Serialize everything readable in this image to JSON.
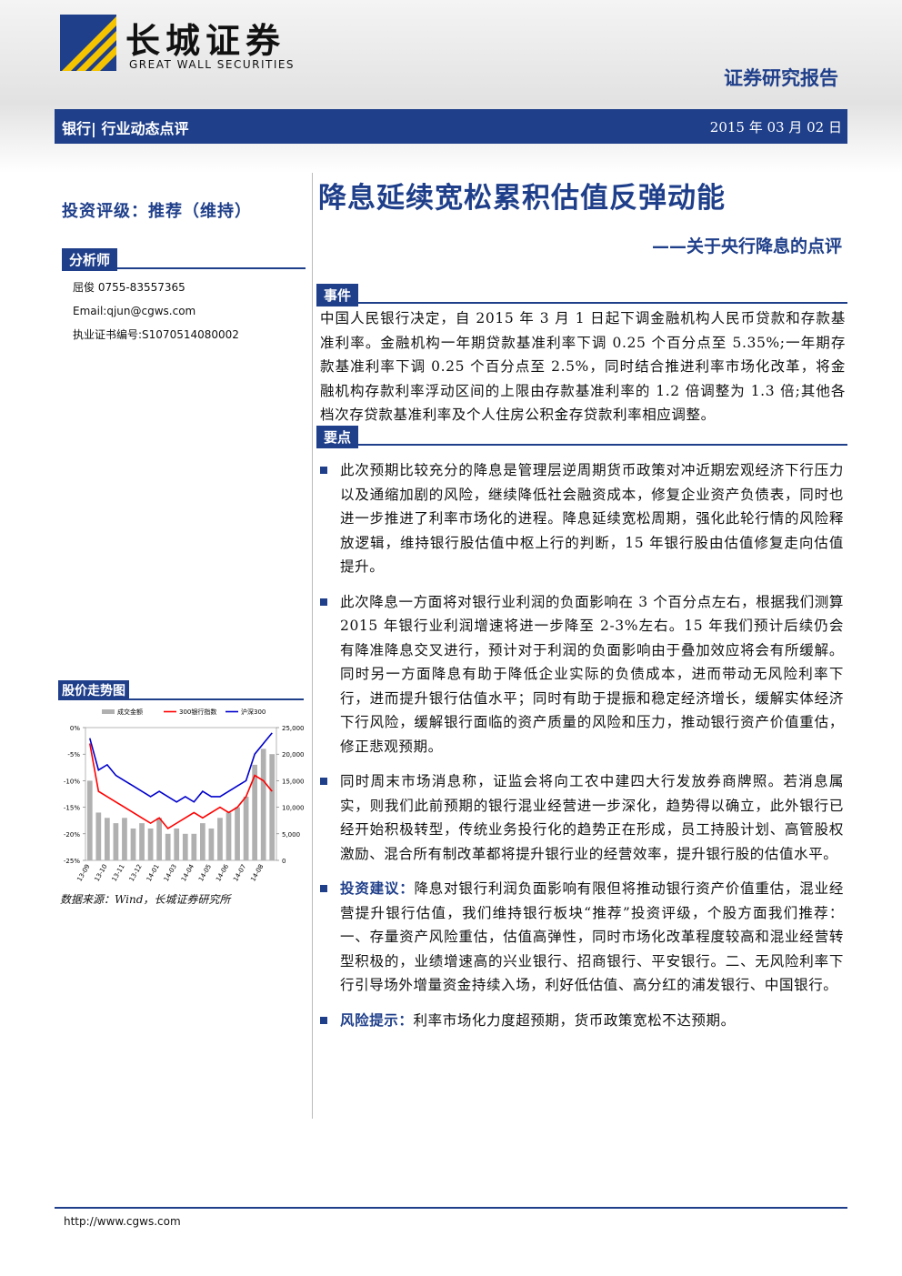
{
  "header": {
    "company_cn": "长城证券",
    "company_en": "GREAT WALL SECURITIES",
    "report_type": "证券研究报告",
    "section": "银行|",
    "category": "行业动态点评",
    "date": "2015 年 03 月 02 日"
  },
  "sidebar": {
    "rating": "投资评级：推荐（维持）",
    "analyst_heading": "分析师",
    "analyst_lines": [
      "屈俊 0755-83557365",
      "Email:qjun@cgws.com",
      "执业证书编号:S1070514080002"
    ],
    "chart_heading": "股价走势图",
    "source": "数据来源：Wind，长城证券研究所"
  },
  "main": {
    "title": "降息延续宽松累积估值反弹动能",
    "subtitle": "——关于央行降息的点评",
    "event_heading": "事件",
    "event_text": "中国人民银行决定，自 2015 年 3 月 1 日起下调金融机构人民币贷款和存款基准利率。金融机构一年期贷款基准利率下调 0.25 个百分点至 5.35%;一年期存款基准利率下调 0.25 个百分点至 2.5%，同时结合推进利率市场化改革，将金融机构存款利率浮动区间的上限由存款基准利率的 1.2 倍调整为 1.3 倍;其他各档次存贷款基准利率及个人住房公积金存贷款利率相应调整。",
    "points_heading": "要点",
    "points": [
      {
        "text": "此次预期比较充分的降息是管理层逆周期货币政策对冲近期宏观经济下行压力以及通缩加剧的风险，继续降低社会融资成本，修复企业资产负债表，同时也进一步推进了利率市场化的进程。降息延续宽松周期，强化此轮行情的风险释放逻辑，维持银行股估值中枢上行的判断，15 年银行股由估值修复走向估值提升。"
      },
      {
        "text": "此次降息一方面将对银行业利润的负面影响在 3 个百分点左右，根据我们测算 2015 年银行业利润增速将进一步降至 2-3%左右。15 年我们预计后续仍会有降准降息交叉进行，预计对于利润的负面影响由于叠加效应将会有所缓解。同时另一方面降息有助于降低企业实际的负债成本，进而带动无风险利率下行，进而提升银行估值水平；同时有助于提振和稳定经济增长，缓解实体经济下行风险，缓解银行面临的资产质量的风险和压力，推动银行资产价值重估，修正悲观预期。"
      },
      {
        "text": "同时周末市场消息称，证监会将向工农中建四大行发放券商牌照。若消息属实，则我们此前预期的银行混业经营进一步深化，趋势得以确立，此外银行已经开始积极转型，传统业务投行化的趋势正在形成，员工持股计划、高管股权激励、混合所有制改革都将提升银行业的经营效率，提升银行股的估值水平。"
      },
      {
        "lead": "投资建议：",
        "text": "降息对银行利润负面影响有限但将推动银行资产价值重估，混业经营提升银行估值，我们维持银行板块“推荐”投资评级，个股方面我们推荐：一、存量资产风险重估，估值高弹性，同时市场化改革程度较高和混业经营转型积极的，业绩增速高的兴业银行、招商银行、平安银行。二、无风险利率下行引导场外增量资金持续入场，利好低估值、高分红的浦发银行、中国银行。"
      },
      {
        "lead": "风险提示：",
        "text": "利率市场化力度超预期，货币政策宽松不达预期。"
      }
    ]
  },
  "footer": {
    "url": "http://www.cgws.com"
  },
  "chart_data": {
    "type": "line",
    "categories": [
      "13-09",
      null,
      "13-10",
      null,
      "13-11",
      null,
      "13-12",
      null,
      "14-01",
      null,
      "14-03",
      null,
      "14-04",
      null,
      "14-05",
      null,
      "14-06",
      null,
      "14-07",
      null,
      "14-08",
      null
    ],
    "series": [
      {
        "name": "成交金额",
        "type": "bar",
        "axis": "y2",
        "color": "#b0b0b0",
        "values": [
          15000,
          9000,
          8000,
          7000,
          8000,
          6000,
          7000,
          6000,
          8000,
          5000,
          6000,
          5000,
          5000,
          7000,
          6000,
          8000,
          9000,
          10000,
          12000,
          18000,
          21000,
          20000
        ]
      },
      {
        "name": "300银行指数",
        "color": "#ff0000",
        "values": [
          -3,
          -12,
          -13,
          -14,
          -15,
          -16,
          -17,
          -18,
          -17,
          -19,
          -18,
          -17,
          -16,
          -17,
          -16,
          -15,
          -16,
          -15,
          -13,
          -9,
          -10,
          -12
        ]
      },
      {
        "name": "沪深300",
        "color": "#0000cc",
        "values": [
          -2,
          -8,
          -7,
          -9,
          -10,
          -11,
          -12,
          -13,
          -12,
          -13,
          -14,
          -13,
          -14,
          -12,
          -13,
          -13,
          -12,
          -11,
          -10,
          -5,
          -3,
          -1
        ]
      }
    ],
    "ylim": [
      -25,
      0
    ],
    "yticks": [
      {
        "value": 0,
        "label": "0%"
      },
      {
        "value": -5,
        "label": "-5%"
      },
      {
        "value": -10,
        "label": "-10%"
      },
      {
        "value": -15,
        "label": "-15%"
      },
      {
        "value": -20,
        "label": "-20%"
      },
      {
        "value": -25,
        "label": "-25%"
      }
    ],
    "y2lim": [
      0,
      25000
    ],
    "y2ticks": [
      {
        "value": 25000,
        "label": "25,000"
      },
      {
        "value": 20000,
        "label": "20,000"
      },
      {
        "value": 15000,
        "label": "15,000"
      },
      {
        "value": 10000,
        "label": "10,000"
      },
      {
        "value": 5000,
        "label": "5,000"
      },
      0
    ]
  }
}
